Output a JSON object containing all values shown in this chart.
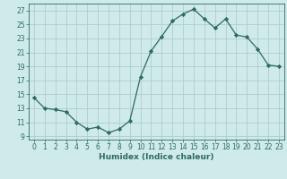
{
  "x": [
    0,
    1,
    2,
    3,
    4,
    5,
    6,
    7,
    8,
    9,
    10,
    11,
    12,
    13,
    14,
    15,
    16,
    17,
    18,
    19,
    20,
    21,
    22,
    23
  ],
  "y": [
    14.5,
    13.0,
    12.8,
    12.5,
    11.0,
    10.0,
    10.3,
    9.5,
    10.0,
    11.2,
    17.5,
    21.2,
    23.3,
    25.5,
    26.5,
    27.2,
    25.8,
    24.5,
    25.8,
    23.5,
    23.2,
    21.5,
    19.2,
    19.0
  ],
  "line_color": "#2e6b5e",
  "marker": "D",
  "marker_size": 2.2,
  "bg_color": "#ceeaea",
  "grid_color": "#b0cccc",
  "xlabel": "Humidex (Indice chaleur)",
  "xlim": [
    -0.5,
    23.5
  ],
  "ylim": [
    8.5,
    28
  ],
  "yticks": [
    9,
    11,
    13,
    15,
    17,
    19,
    21,
    23,
    25,
    27
  ],
  "xticks": [
    0,
    1,
    2,
    3,
    4,
    5,
    6,
    7,
    8,
    9,
    10,
    11,
    12,
    13,
    14,
    15,
    16,
    17,
    18,
    19,
    20,
    21,
    22,
    23
  ],
  "font_color": "#2e6b5e",
  "xlabel_fontsize": 6.5,
  "tick_fontsize": 5.5
}
